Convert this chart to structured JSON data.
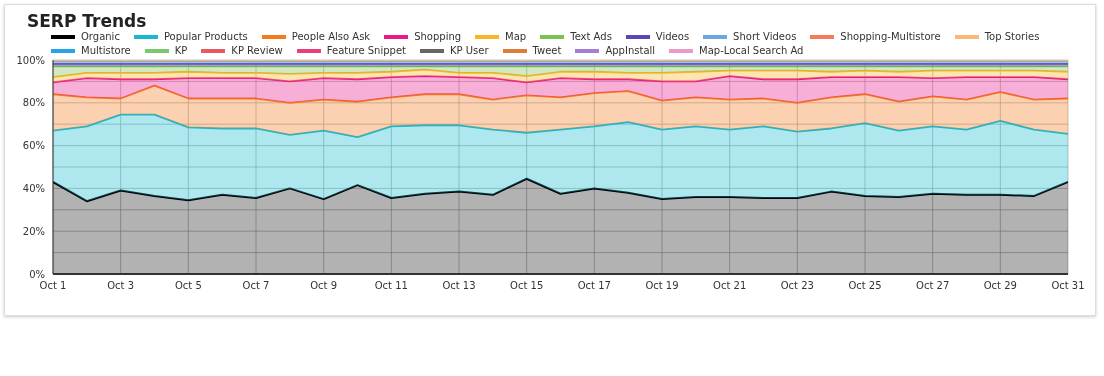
{
  "chart_data": {
    "type": "area",
    "title": "SERP Trends",
    "stacked": true,
    "grid": true,
    "legend": "top",
    "categories": [
      "Oct 1",
      null,
      "Oct 3",
      null,
      "Oct 5",
      null,
      "Oct 7",
      null,
      "Oct 9",
      null,
      "Oct 11",
      null,
      "Oct 13",
      null,
      "Oct 15",
      null,
      "Oct 17",
      null,
      "Oct 19",
      null,
      "Oct 21",
      null,
      "Oct 23",
      null,
      "Oct 25",
      null,
      "Oct 27",
      null,
      "Oct 29",
      null,
      "Oct 31"
    ],
    "ylim": [
      0,
      100
    ],
    "yticks": [
      {
        "value": 0,
        "label": "0%"
      },
      {
        "value": 10,
        "label": null
      },
      {
        "value": 20,
        "label": "20%"
      },
      {
        "value": 30,
        "label": null
      },
      {
        "value": 40,
        "label": "40%"
      },
      {
        "value": 50,
        "label": null
      },
      {
        "value": 60,
        "label": "60%"
      },
      {
        "value": 70,
        "label": null
      },
      {
        "value": 80,
        "label": "80%"
      },
      {
        "value": 90,
        "label": null
      },
      {
        "value": 100,
        "label": "100%"
      }
    ],
    "series": [
      {
        "name": "Organic",
        "color": "#000000",
        "values": [
          43,
          34,
          39,
          36.5,
          34.5,
          37,
          35.5,
          40,
          35,
          41.5,
          35.5,
          37.5,
          38.5,
          37,
          44.5,
          37.5,
          40,
          38,
          35,
          36,
          36,
          35.5,
          35.5,
          38.5,
          36.5,
          36,
          37.5,
          37,
          37,
          36.5,
          43
        ]
      },
      {
        "name": "Popular Products",
        "color": "#17b9cf",
        "values": [
          24,
          35,
          35.5,
          38,
          34,
          31,
          32.5,
          25,
          32,
          22.5,
          33.5,
          32,
          31,
          30.5,
          21.5,
          30,
          29,
          33,
          32.5,
          33,
          31.5,
          33.5,
          31,
          29.5,
          34,
          31,
          31.5,
          30.5,
          34.5,
          31,
          22.5
        ]
      },
      {
        "name": "People Also Ask",
        "color": "#f47a1f",
        "values": [
          17,
          13.5,
          7.5,
          13.5,
          13.5,
          14,
          14,
          15,
          14.5,
          16.5,
          13.5,
          14.5,
          14.5,
          14,
          17.5,
          15,
          15.5,
          14.5,
          13.5,
          13.5,
          14,
          13,
          13.5,
          14.5,
          13.5,
          13.5,
          14,
          14,
          13.5,
          14,
          16.5
        ]
      },
      {
        "name": "Shopping",
        "color": "#e8198b",
        "values": [
          5.5,
          9,
          9,
          3,
          9.5,
          9.5,
          9.5,
          10,
          10,
          10.5,
          9.5,
          8.5,
          8,
          10,
          6,
          9,
          6.5,
          5.5,
          9,
          7.5,
          11,
          9,
          11,
          9.5,
          8,
          11.5,
          8.5,
          10.5,
          7,
          10.5,
          9
        ]
      },
      {
        "name": "Map",
        "color": "#f9b526",
        "values": [
          2.5,
          2.5,
          3,
          3,
          3,
          2.5,
          2.5,
          3.5,
          2.5,
          3,
          2.5,
          3,
          2,
          2.5,
          3,
          3,
          3.5,
          3,
          4,
          4.5,
          2.5,
          4,
          4,
          2.5,
          3,
          2.5,
          3.5,
          3,
          3,
          3,
          3.5
        ]
      },
      {
        "name": "Text Ads",
        "color": "#7cc253",
        "values": [
          5,
          3,
          3,
          3,
          2.5,
          3,
          3,
          3.5,
          3,
          3,
          2.5,
          1.5,
          3,
          3,
          4.5,
          2.5,
          2.5,
          3,
          3,
          2.5,
          2,
          2,
          2,
          2.5,
          2,
          2.5,
          2,
          2,
          2,
          2,
          2.5
        ]
      },
      {
        "name": "Videos",
        "color": "#5b45b8",
        "values": [
          1.2,
          1.2,
          1.2,
          1.2,
          1.2,
          1.2,
          1.2,
          1.2,
          1.2,
          1.2,
          1.2,
          1.2,
          1.2,
          1.2,
          1.2,
          1.2,
          1.2,
          1.2,
          1.2,
          1.2,
          1.2,
          1.2,
          1.2,
          1.2,
          1.2,
          1.2,
          1.2,
          1.2,
          1.2,
          1.2,
          1.2
        ]
      },
      {
        "name": "Short Videos",
        "color": "#6ea6e0",
        "values": [
          1,
          1,
          1,
          1,
          1,
          1,
          1,
          1,
          1,
          1,
          1,
          1,
          1,
          1,
          1,
          1,
          1,
          1,
          1,
          1,
          1,
          1,
          1,
          1,
          1,
          1,
          1,
          1,
          1,
          1,
          1
        ]
      },
      {
        "name": "Shopping-Multistore",
        "color": "#f47a5a",
        "values": [
          null,
          null,
          null,
          null,
          null,
          null,
          null,
          null,
          null,
          null,
          null,
          null,
          null,
          null,
          null,
          null,
          null,
          null,
          null,
          null,
          null,
          null,
          null,
          null,
          null,
          null,
          null,
          null,
          null,
          null,
          null
        ]
      },
      {
        "name": "Top Stories",
        "color": "#f9b77a",
        "values": [
          0.8,
          0.8,
          0.8,
          0.8,
          0.8,
          0.8,
          0.8,
          0.8,
          0.8,
          0.8,
          0.8,
          0.8,
          0.8,
          0.8,
          0.8,
          0.8,
          0.8,
          0.8,
          0.8,
          0.8,
          0.8,
          0.8,
          0.8,
          0.8,
          0.8,
          0.8,
          0.8,
          0.8,
          0.8,
          0.8,
          0.8
        ]
      },
      {
        "name": "Multistore",
        "color": "#29a3e8",
        "values": [
          null,
          null,
          null,
          null,
          null,
          null,
          null,
          null,
          null,
          null,
          null,
          null,
          null,
          null,
          null,
          null,
          null,
          null,
          null,
          null,
          null,
          null,
          null,
          null,
          null,
          null,
          null,
          null,
          null,
          null,
          null
        ]
      },
      {
        "name": "KP",
        "color": "#7cc86e",
        "values": [
          null,
          null,
          null,
          null,
          null,
          null,
          null,
          null,
          null,
          null,
          null,
          null,
          null,
          null,
          null,
          null,
          null,
          null,
          null,
          null,
          null,
          null,
          null,
          null,
          null,
          null,
          null,
          null,
          null,
          null,
          null
        ]
      },
      {
        "name": "KP Review",
        "color": "#e8595f",
        "values": [
          null,
          null,
          null,
          null,
          null,
          null,
          null,
          null,
          null,
          null,
          null,
          null,
          null,
          null,
          null,
          null,
          null,
          null,
          null,
          null,
          null,
          null,
          null,
          null,
          null,
          null,
          null,
          null,
          null,
          null,
          null
        ]
      },
      {
        "name": "Feature Snippet",
        "color": "#e8407a",
        "values": [
          null,
          null,
          null,
          null,
          null,
          null,
          null,
          null,
          null,
          null,
          null,
          null,
          null,
          null,
          null,
          null,
          null,
          null,
          null,
          null,
          null,
          null,
          null,
          null,
          null,
          null,
          null,
          null,
          null,
          null,
          null
        ]
      },
      {
        "name": "KP User",
        "color": "#666666",
        "values": [
          null,
          null,
          null,
          null,
          null,
          null,
          null,
          null,
          null,
          null,
          null,
          null,
          null,
          null,
          null,
          null,
          null,
          null,
          null,
          null,
          null,
          null,
          null,
          null,
          null,
          null,
          null,
          null,
          null,
          null,
          null
        ]
      },
      {
        "name": "Tweet",
        "color": "#e07b39",
        "values": [
          null,
          null,
          null,
          null,
          null,
          null,
          null,
          null,
          null,
          null,
          null,
          null,
          null,
          null,
          null,
          null,
          null,
          null,
          null,
          null,
          null,
          null,
          null,
          null,
          null,
          null,
          null,
          null,
          null,
          null,
          null
        ]
      },
      {
        "name": "AppInstall",
        "color": "#a57cd6",
        "values": [
          null,
          null,
          null,
          null,
          null,
          null,
          null,
          null,
          null,
          null,
          null,
          null,
          null,
          null,
          null,
          null,
          null,
          null,
          null,
          null,
          null,
          null,
          null,
          null,
          null,
          null,
          null,
          null,
          null,
          null,
          null
        ]
      },
      {
        "name": "Map-Local Search Ad",
        "color": "#e89ac8",
        "values": [
          null,
          null,
          null,
          null,
          null,
          null,
          null,
          null,
          null,
          null,
          null,
          null,
          null,
          null,
          null,
          null,
          null,
          null,
          null,
          null,
          null,
          null,
          null,
          null,
          null,
          null,
          null,
          null,
          null,
          null,
          null
        ]
      }
    ]
  }
}
